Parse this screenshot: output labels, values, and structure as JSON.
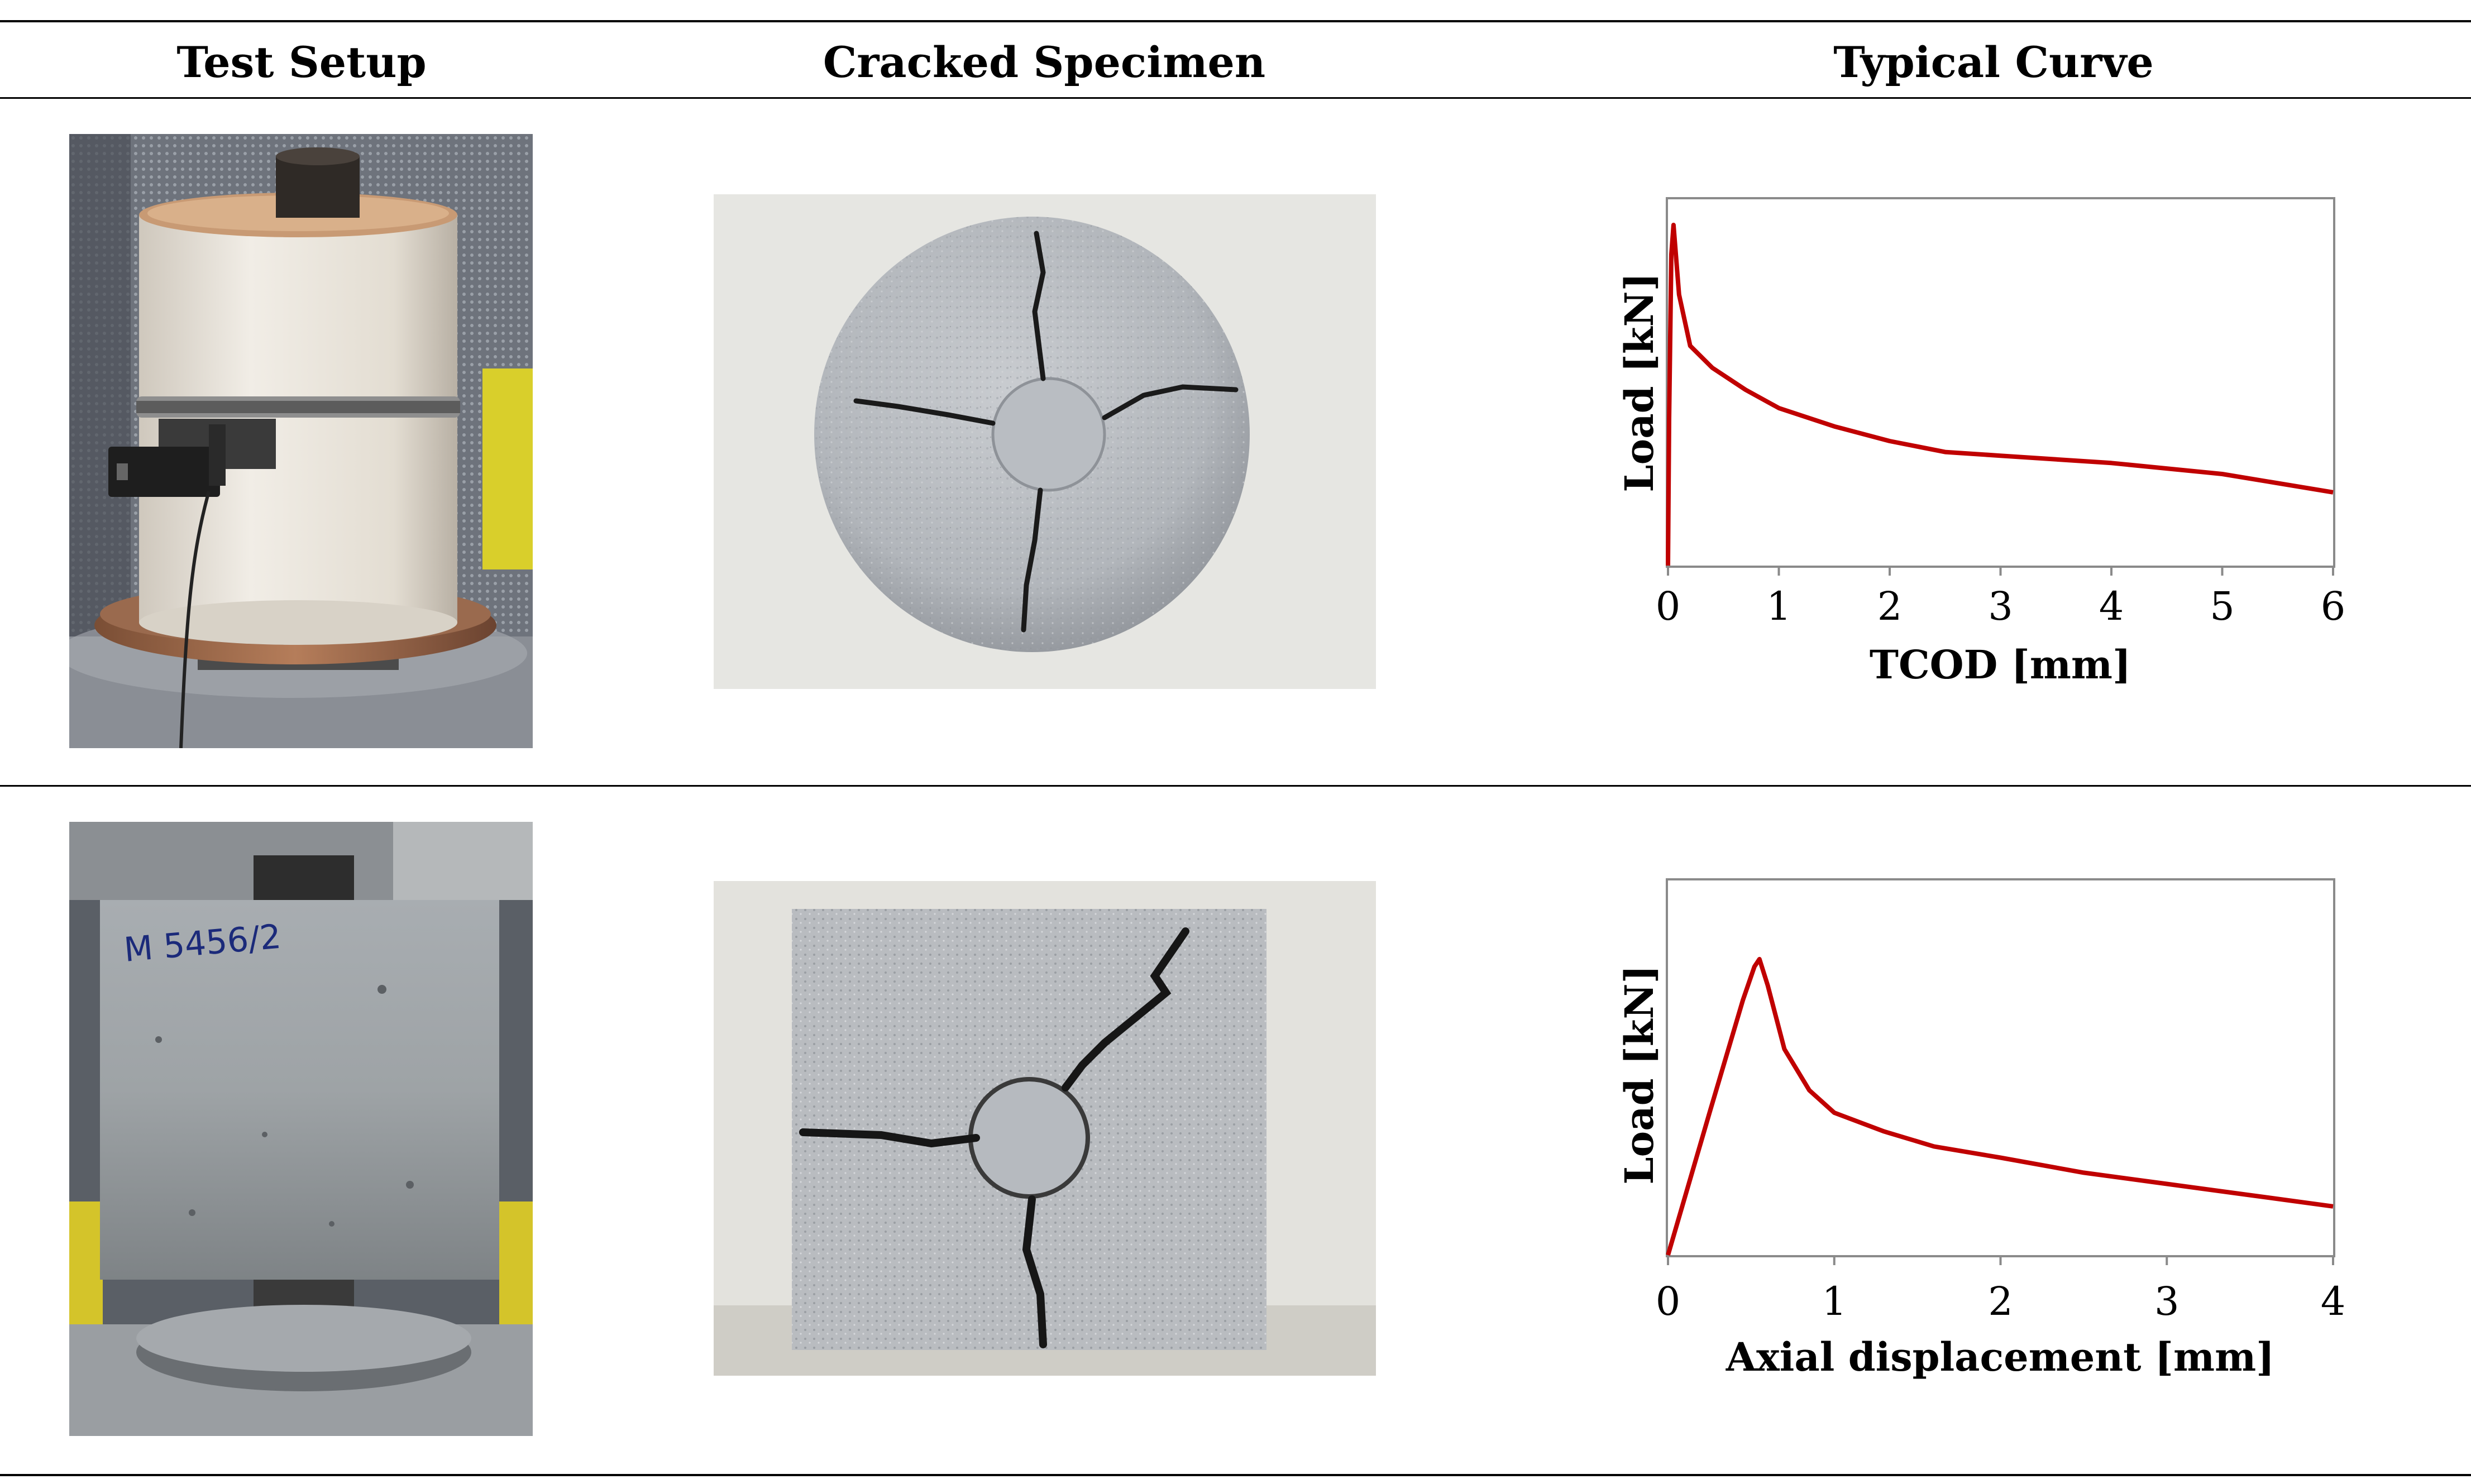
{
  "headers": [
    "Test Setup",
    "Cracked Specimen",
    "Typical Curve"
  ],
  "rows": [
    {
      "setup_photo": "cylindrical-specimen-with-circumferential-chain-extensometer",
      "specimen_photo": "round-specimen-cracked-into-four-pieces",
      "specimen_label": ""
    },
    {
      "setup_photo": "cubic-specimen-under-punch-loading",
      "specimen_photo": "square-specimen-cracked-around-central-punch",
      "specimen_label": "M 5456/2"
    }
  ],
  "chart_data": [
    {
      "type": "line",
      "title": "",
      "xlabel": "TCOD [mm]",
      "ylabel": "Load [kN]",
      "xlim": [
        0,
        6
      ],
      "xticks": [
        "0",
        "1",
        "2",
        "3",
        "4",
        "5",
        "6"
      ],
      "y_tick_labels_shown": false,
      "grid": false,
      "color": "#c00000",
      "series": [
        {
          "x": [
            0,
            0.01,
            0.03,
            0.05,
            0.1,
            0.2,
            0.4,
            0.7,
            1.0,
            1.5,
            2.0,
            2.5,
            3.0,
            4.0,
            5.0,
            6.0
          ],
          "y": [
            0.0,
            0.4,
            0.85,
            0.93,
            0.74,
            0.6,
            0.54,
            0.48,
            0.43,
            0.38,
            0.34,
            0.31,
            0.3,
            0.28,
            0.25,
            0.2
          ]
        }
      ]
    },
    {
      "type": "line",
      "title": "",
      "xlabel": "Axial displacement [mm]",
      "ylabel": "Load [kN]",
      "xlim": [
        0,
        4
      ],
      "xticks": [
        "0",
        "1",
        "2",
        "3",
        "4"
      ],
      "y_tick_labels_shown": false,
      "grid": false,
      "color": "#c00000",
      "series": [
        {
          "x": [
            0,
            0.25,
            0.45,
            0.52,
            0.55,
            0.6,
            0.7,
            0.85,
            1.0,
            1.3,
            1.6,
            2.0,
            2.5,
            3.0,
            3.5,
            4.0
          ],
          "y": [
            0,
            0.38,
            0.68,
            0.77,
            0.79,
            0.72,
            0.55,
            0.44,
            0.38,
            0.33,
            0.29,
            0.26,
            0.22,
            0.19,
            0.16,
            0.13
          ]
        }
      ]
    }
  ]
}
